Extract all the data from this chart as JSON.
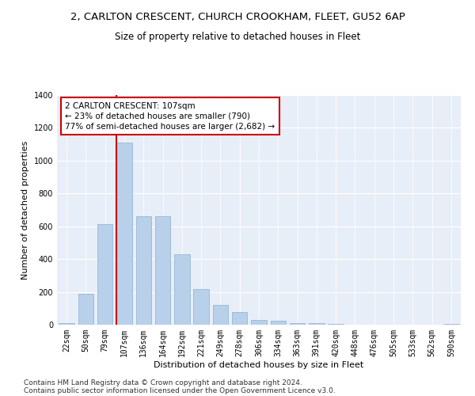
{
  "title1": "2, CARLTON CRESCENT, CHURCH CROOKHAM, FLEET, GU52 6AP",
  "title2": "Size of property relative to detached houses in Fleet",
  "xlabel": "Distribution of detached houses by size in Fleet",
  "ylabel": "Number of detached properties",
  "footer1": "Contains HM Land Registry data © Crown copyright and database right 2024.",
  "footer2": "Contains public sector information licensed under the Open Government Licence v3.0.",
  "bar_labels": [
    "22sqm",
    "50sqm",
    "79sqm",
    "107sqm",
    "136sqm",
    "164sqm",
    "192sqm",
    "221sqm",
    "249sqm",
    "278sqm",
    "306sqm",
    "334sqm",
    "363sqm",
    "391sqm",
    "420sqm",
    "448sqm",
    "476sqm",
    "505sqm",
    "533sqm",
    "562sqm",
    "590sqm"
  ],
  "bar_values": [
    10,
    190,
    615,
    1110,
    660,
    660,
    430,
    215,
    120,
    75,
    30,
    25,
    10,
    10,
    5,
    0,
    0,
    0,
    0,
    0,
    5
  ],
  "bar_color": "#b8d0ea",
  "bar_edge_color": "#8ab0d0",
  "red_line_index": 3,
  "red_line_color": "#cc0000",
  "ylim": [
    0,
    1400
  ],
  "yticks": [
    0,
    200,
    400,
    600,
    800,
    1000,
    1200,
    1400
  ],
  "annotation_text": "2 CARLTON CRESCENT: 107sqm\n← 23% of detached houses are smaller (790)\n77% of semi-detached houses are larger (2,682) →",
  "annotation_box_color": "#cc0000",
  "bg_color": "#e8eef8",
  "grid_color": "#ffffff",
  "title1_fontsize": 9.5,
  "title2_fontsize": 8.5,
  "xlabel_fontsize": 8,
  "ylabel_fontsize": 8,
  "tick_fontsize": 7,
  "footer_fontsize": 6.5,
  "ann_fontsize": 7.5
}
